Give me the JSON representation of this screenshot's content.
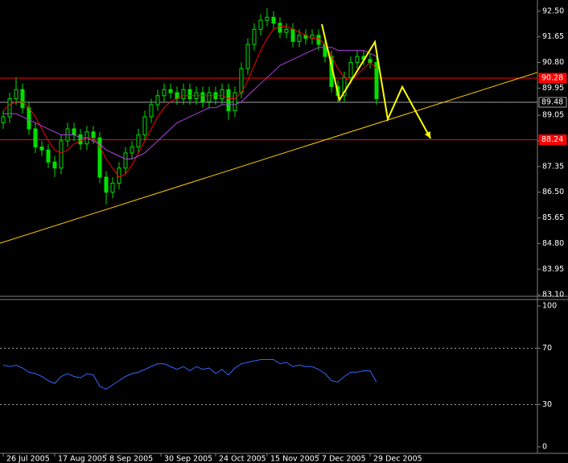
{
  "chart_data": [
    {
      "type": "candlestick",
      "x": [
        0,
        1,
        2,
        3,
        4,
        5,
        6,
        7,
        8,
        9,
        10,
        11,
        12,
        13,
        14,
        15,
        16,
        17,
        18,
        19,
        20,
        21,
        22,
        23,
        24,
        25,
        26,
        27,
        28,
        29,
        30,
        31,
        32,
        33,
        34,
        35,
        36,
        37,
        38,
        39,
        40,
        41,
        42,
        43,
        44,
        45,
        46,
        47,
        48,
        49,
        50,
        51,
        52,
        53,
        54,
        55,
        56,
        57,
        58
      ],
      "open": [
        88.8,
        89.0,
        89.6,
        89.9,
        89.3,
        88.6,
        88.0,
        87.9,
        87.5,
        87.3,
        88.2,
        88.6,
        88.4,
        88.1,
        88.5,
        88.3,
        87.0,
        86.5,
        86.8,
        87.3,
        87.8,
        88.0,
        88.4,
        89.0,
        89.4,
        89.7,
        89.9,
        89.8,
        89.6,
        89.9,
        89.6,
        89.8,
        89.5,
        89.8,
        89.6,
        89.9,
        89.2,
        89.8,
        90.6,
        91.4,
        91.9,
        92.2,
        92.3,
        92.1,
        91.8,
        91.9,
        91.5,
        91.7,
        91.6,
        91.7,
        91.4,
        91.0,
        90.0,
        89.7,
        90.3,
        90.8,
        91.0,
        90.9,
        90.8
      ],
      "high": [
        89.2,
        89.8,
        90.3,
        90.1,
        89.5,
        88.8,
        88.2,
        88.1,
        87.7,
        88.4,
        88.8,
        88.8,
        88.6,
        88.7,
        88.7,
        88.5,
        87.2,
        87.0,
        87.5,
        88.0,
        88.2,
        88.6,
        89.2,
        89.6,
        89.9,
        90.1,
        90.1,
        90.0,
        90.1,
        90.1,
        90.0,
        90.0,
        90.0,
        90.0,
        90.1,
        90.1,
        90.0,
        90.8,
        91.6,
        92.1,
        92.4,
        92.6,
        92.5,
        92.3,
        92.1,
        92.1,
        91.9,
        91.9,
        91.9,
        91.9,
        91.6,
        91.2,
        90.2,
        90.5,
        91.0,
        91.2,
        91.2,
        91.1,
        91.0
      ],
      "low": [
        88.6,
        88.8,
        89.4,
        89.1,
        88.4,
        87.8,
        87.7,
        87.3,
        87.0,
        87.1,
        88.0,
        88.2,
        87.9,
        87.9,
        88.1,
        86.8,
        86.1,
        86.3,
        86.6,
        87.1,
        87.6,
        87.8,
        88.2,
        88.8,
        89.2,
        89.5,
        89.6,
        89.4,
        89.4,
        89.4,
        89.4,
        89.3,
        89.3,
        89.4,
        89.4,
        88.9,
        89.0,
        89.6,
        90.4,
        91.2,
        91.7,
        92.0,
        91.9,
        91.6,
        91.6,
        91.3,
        91.3,
        91.4,
        91.4,
        91.2,
        90.8,
        89.8,
        89.5,
        89.5,
        90.1,
        90.6,
        90.7,
        90.6,
        89.4
      ],
      "close": [
        89.0,
        89.6,
        89.9,
        89.3,
        88.6,
        88.0,
        87.9,
        87.5,
        87.3,
        88.2,
        88.6,
        88.4,
        88.1,
        88.5,
        88.3,
        87.0,
        86.5,
        86.8,
        87.3,
        87.8,
        88.0,
        88.4,
        89.0,
        89.4,
        89.7,
        89.9,
        89.8,
        89.6,
        89.9,
        89.6,
        89.8,
        89.5,
        89.8,
        89.6,
        89.9,
        89.2,
        89.8,
        90.6,
        91.4,
        91.9,
        92.2,
        92.3,
        92.1,
        91.8,
        91.9,
        91.5,
        91.7,
        91.6,
        91.7,
        91.4,
        91.0,
        90.0,
        89.7,
        90.3,
        90.8,
        91.0,
        90.9,
        90.8,
        89.6
      ],
      "color": "#00e000",
      "series": [
        {
          "color": "#ff0000",
          "values": [
            89.2,
            89.4,
            89.5,
            89.5,
            89.3,
            89.0,
            88.6,
            88.2,
            87.9,
            87.8,
            87.9,
            88.1,
            88.2,
            88.3,
            88.3,
            88.0,
            87.6,
            87.3,
            87.0,
            87.1,
            87.4,
            87.8,
            88.2,
            88.6,
            89.0,
            89.3,
            89.5,
            89.6,
            89.7,
            89.7,
            89.7,
            89.7,
            89.7,
            89.7,
            89.7,
            89.6,
            89.6,
            89.8,
            90.2,
            90.7,
            91.2,
            91.6,
            91.9,
            92.0,
            92.0,
            91.9,
            91.8,
            91.7,
            91.6,
            91.6,
            91.4,
            91.0,
            90.6,
            90.3,
            90.2,
            90.4,
            90.6,
            90.8,
            90.6
          ]
        },
        {
          "color": "#b040e0",
          "values": [
            89.1,
            89.1,
            89.1,
            89.0,
            88.9,
            88.8,
            88.7,
            88.6,
            88.5,
            88.4,
            88.4,
            88.4,
            88.3,
            88.3,
            88.2,
            88.1,
            87.9,
            87.8,
            87.7,
            87.6,
            87.6,
            87.7,
            87.8,
            88.0,
            88.2,
            88.4,
            88.6,
            88.8,
            88.9,
            89.0,
            89.1,
            89.2,
            89.3,
            89.3,
            89.4,
            89.4,
            89.4,
            89.5,
            89.7,
            89.9,
            90.1,
            90.3,
            90.5,
            90.7,
            90.8,
            90.9,
            91.0,
            91.1,
            91.2,
            91.3,
            91.3,
            91.3,
            91.2,
            91.2,
            91.2,
            91.2,
            91.2,
            91.1,
            91.0
          ]
        }
      ],
      "levels": [
        {
          "value": 90.28,
          "color": "#ff0000"
        },
        {
          "value": 89.48,
          "color": "#a0a0a0"
        },
        {
          "value": 88.24,
          "color": "#ff0000"
        }
      ],
      "trendline": {
        "x": [
          -0.5,
          83
        ],
        "y": [
          84.81,
          90.47
        ],
        "color": "#ffcc00"
      },
      "pattern": {
        "x": [
          49.5,
          52.25,
          57.75,
          59.75,
          62,
          66.4
        ],
        "y": [
          92.07,
          89.56,
          91.48,
          88.92,
          89.99,
          88.28
        ],
        "color": "#ffff00"
      },
      "xlim": [
        -0.5,
        83
      ],
      "ylim": [
        83.05,
        92.87
      ],
      "yticks": [
        {
          "value": 92.5,
          "label": "92.50"
        },
        91.65,
        {
          "value": 90.8,
          "label": "90.80"
        },
        89.95,
        89.05,
        {
          "value": 88.2,
          "label": "88.20"
        },
        87.35,
        {
          "value": 86.5,
          "label": "86.50"
        },
        85.65,
        {
          "value": 84.8,
          "label": "84.80"
        },
        83.95,
        {
          "value": 83.1,
          "label": "83.10"
        }
      ],
      "xticks": [
        {
          "value": 0,
          "label": "26 Jul 2005"
        },
        {
          "value": 8,
          "label": "17 Aug 2005"
        },
        {
          "value": 16,
          "label": "8 Sep 2005"
        },
        {
          "value": 24.5,
          "label": "30 Sep 2005"
        },
        {
          "value": 33,
          "label": "24 Oct 2005"
        },
        {
          "value": 41,
          "label": "15 Nov 2005"
        },
        {
          "value": 49,
          "label": "7 Dec 2005"
        },
        {
          "value": 57,
          "label": "29 Dec 2005"
        }
      ]
    },
    {
      "type": "line",
      "x": [
        0,
        1,
        2,
        3,
        4,
        5,
        6,
        7,
        8,
        9,
        10,
        11,
        12,
        13,
        14,
        15,
        16,
        17,
        18,
        19,
        20,
        21,
        22,
        23,
        24,
        25,
        26,
        27,
        28,
        29,
        30,
        31,
        32,
        33,
        34,
        35,
        36,
        37,
        38,
        39,
        40,
        41,
        42,
        43,
        44,
        45,
        46,
        47,
        48,
        49,
        50,
        51,
        52,
        53,
        54,
        55,
        56,
        57,
        58
      ],
      "series": [
        {
          "color": "#3366ff",
          "values": [
            58,
            57,
            58,
            56,
            53,
            52,
            50,
            47,
            45,
            50,
            52,
            50,
            49,
            52,
            51,
            43,
            41,
            44,
            47,
            50,
            52,
            53,
            55,
            57,
            59,
            59,
            57,
            55,
            57,
            54,
            57,
            55,
            56,
            52,
            55,
            51,
            56,
            59,
            60,
            61,
            62,
            62,
            62,
            59,
            60,
            57,
            58,
            57,
            57,
            55,
            52,
            47,
            46,
            50,
            53,
            53,
            54,
            54,
            46
          ]
        }
      ],
      "levels": [
        70,
        30
      ],
      "xlim": [
        -0.5,
        83
      ],
      "ylim": [
        -4.6,
        104.6
      ],
      "yticks": [
        100,
        70,
        30,
        0
      ]
    }
  ]
}
